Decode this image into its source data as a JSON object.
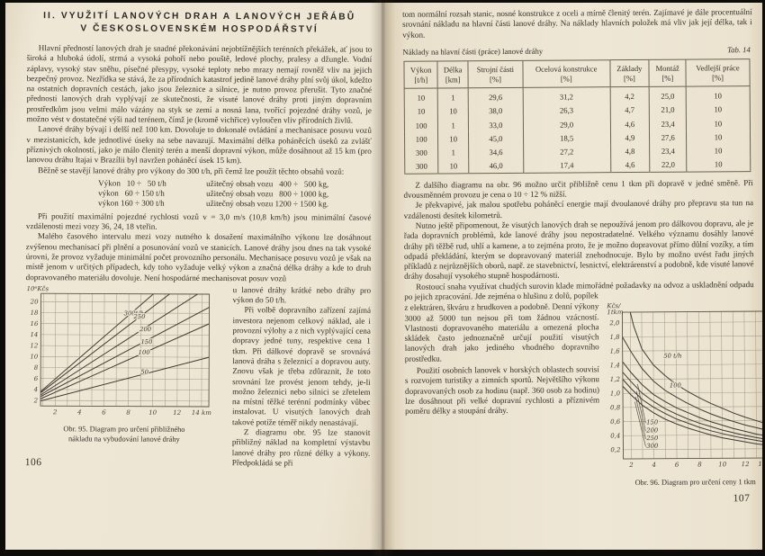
{
  "left_page": {
    "page_number": "106",
    "title_line1": "II. VYUŽITÍ LANOVÝCH DRAH A LANOVÝCH JEŘÁBŮ",
    "title_line2": "V ČESKOSLOVENSKÉM HOSPODÁŘSTVÍ",
    "p1": "Hlavní předností lanových drah je snadné překonávání nejobtížnějších terénních překážek, ať jsou to široká a hluboká údolí, strmá a vysoká pohoří nebo pouště, ledové plochy, pralesy a džungle. Vodní záplavy, vysoký stav sněhu, písečné přesypy, vysoké teploty nebo mrazy nemají rovněž vliv na jejich bezpečný provoz. Nezřídka se stává, že za přírodních katastrof jedině lanové dráhy plní svůj úkol, kdežto na ostatních dopravních cestách, jako jsou železnice a silnice, je nutno provoz přerušit. Tyto značné přednosti lanových drah vyplývají ze skutečnosti, že visuté lanové dráhy proti jiným dopravním prostředkům jsou velmi málo vázány na styk se zemí a nosná lana, tvořící pojezdné dráhy vozů, je možno vést v dostatečné výši nad terénem, čímž je (kromě vichřice) vyloučen vliv přírodních živlů.",
    "p2": "Lanové dráhy bývají i delší než 100 km. Dovoluje to dokonalé ovládání a mechanisace posuvu vozů v mezistanicích, kde jednotlivé úseky na sebe navazují. Maximální délka poháněcích úseků za zvlášť příznivých okolností, jako je málo členitý terén a menší dopravní výkon, může dosáhnout až 15 km (pro lanovou dráhu Itajai v Brazílii byl navržen poháněcí úsek 15 km).",
    "p3": "Běžně se stavějí lanové dráhy pro výkony do 300 t/h, při čemž lze použít těchto obsahů vozů:",
    "capacity": [
      {
        "c1": "Výkon   10 ÷   50 t/h",
        "c2": "užitečný obsah vozu   400 ÷   500 kg,"
      },
      {
        "c1": "výkon   60 ÷ 150 t/h",
        "c2": "užitečný obsah vozu   800 ÷ 1000 kg,"
      },
      {
        "c1": "výkon 160 ÷ 300 t/h",
        "c2": "užitečný obsah vozu 1200 ÷ 1500 kg."
      }
    ],
    "p4": "Při použití maximální pojezdné rychlosti vozů v = 3,0 m/s (10,8 km/h) jsou minimální časové vzdálenosti mezi vozy 36, 24, 18 vteřin.",
    "p5": "Malého časového intervalu mezi vozy nutného k dosažení maximálního výkonu lze dosáhnout zvýšenou mechanisací při plnění a posunování vozů ve stanicích. Lanové dráhy jsou dnes na tak vysoké úrovni, že provoz vyžaduje minimální počet provozního personálu. Mechanisace posuvu vozů je však na místě jenom v určitých případech, kdy toho vyžaduje velký výkon a značná délka dráhy a kde to druh dopravovaného materiálu dovoluje. Není hospodárné mechanisovat posuv vozů",
    "p5_cont": "u lanové dráhy krátké nebo dráhy pro výkon do 50 t/h.",
    "p6": "Při volbě dopravního zařízení zajímá investora nejenom celkový náklad, ale i provozní výlohy a z nich vyplývající cena dopravy jedné tuny, respektive cena 1 tkm. Při dálkové dopravě se srovnává lanová dráha s železnicí a dopravou auty. Znovu však je třeba zdůraznit, že toto srovnání lze provést jenom tehdy, je-li možno železnici nebo silnici se zřetelem na místní těžké terénní podmínky vůbec instalovat. U visutých lanových drah takové potíže téměř nikdy nenastávají.",
    "p7": "Z diagramu obr. 95 lze stanovit přibližný náklad na kompletní výstavbu lanové dráhy pro různé délky a výkony. Předpokládá se při",
    "figure": {
      "caption1": "Obr. 95. Diagram pro určení přibližného",
      "caption2": "nákladu na vybudování lanové dráhy"
    }
  },
  "right_page": {
    "page_number": "107",
    "p0": "tom normální rozsah stanic, nosné konstrukce z oceli a mírně členitý terén. Zajímavé je dále procentuální srovnání nákladu na hlavní části lanové dráhy. Na náklady hlavních položek má vliv jak její délka, tak i výkon.",
    "table_caption": "Náklady na hlavní části (práce) lanové dráhy",
    "tab_label": "Tab. 14",
    "table": {
      "headers": [
        {
          "name": "Výkon",
          "unit": "[t/h]"
        },
        {
          "name": "Délka",
          "unit": "[km]"
        },
        {
          "name": "Strojní části",
          "unit": "[%]"
        },
        {
          "name": "Ocelová konstrukce",
          "unit": "[%]"
        },
        {
          "name": "Základy",
          "unit": "[%]"
        },
        {
          "name": "Montáž",
          "unit": "[%]"
        },
        {
          "name": "Vedlejší práce",
          "unit": "[%]"
        }
      ],
      "rows": [
        [
          "10",
          "1",
          "29,6",
          "31,2",
          "4,2",
          "25,0",
          "10"
        ],
        [
          "10",
          "10",
          "38,0",
          "26,3",
          "4,7",
          "21,0",
          "10"
        ],
        [
          "100",
          "1",
          "33,0",
          "29,0",
          "4,6",
          "23,4",
          "10"
        ],
        [
          "100",
          "10",
          "45,0",
          "18,5",
          "4,9",
          "27,6",
          "10"
        ],
        [
          "300",
          "1",
          "34,6",
          "27,2",
          "4,8",
          "23,4",
          "10"
        ],
        [
          "300",
          "10",
          "46,0",
          "17,4",
          "4,6",
          "22,0",
          "10"
        ]
      ]
    },
    "p1": "Z dalšího diagramu na obr. 96 možno určit přibližně cenu 1 tkm při dopravě v jedné směně. Při dvousměnném provozu je cena o 10 ÷ 12 % nižší.",
    "p2": "Je překvapivé, jak malou spotřebu poháněcí energie mají dvoulanové dráhy pro přepravu sta tun na vzdálenosti desítek kilometrů.",
    "p3": "Nutno ještě připomenout, že visutých lanových drah se nepoužívá jenom pro dálkovou dopravu, ale je řada dopravních problémů, kde lanové dráhy jsou nepostradatelné. Velkého významu dosáhly lanové dráhy při těžbě rud, uhlí a kamene, a to zejména proto, že je možno dopravovat přímo důlní vozíky, a tím odpadá překládání, kterým se dopravovaný materiál znehodnocuje. Bylo by možno uvést řadu jiných příkladů z nejrůznějších oborů, např. ze stavebnictví, lesnictví, elektrárenství a podobně, kde visuté lanové dráhy dosahují vysokého stupně hospodárnosti.",
    "p4a": "Rostoucí snaha využívat chudých surovin klade mimořádné požadavky na odvoz a uskladnění odpadu po jejich zpracování. Jde zejména o hlušinu z dolů, popílek",
    "p4b": "z elektráren, škváru z hrudkoven a podobně. Denní výkony 3000 až 5000 tun nejsou při tom žádnou vzácností. Vlastnosti dopravovaného materiálu a omezená plocha skládek často jednoznačně určují použití visutých lanových drah jako jediného vhodného dopravního prostředku.",
    "p5": "Použití osobních lanovek v horských oblastech souvisí s rozvojem turistiky a zimních sportů. Největšího výkonu dopravovaných osob za hodinu (např. 360 osob za hodinu) lze dosáhnout při velké dopravní rychlosti a příznivém poměru délky a stoupání dráhy.",
    "figure": {
      "caption": "Obr. 96. Diagram pro určení ceny 1 tkm"
    }
  },
  "chart_data": [
    {
      "id": "obr95",
      "type": "line",
      "title": "Obr. 95. Diagram pro určení přibližného nákladu na vybudování lanové dráhy",
      "xlabel": "km",
      "ylabel": "10⁶Kčs",
      "ylabel_lines": [
        "10⁶Kčs"
      ],
      "xlim": [
        0.8,
        14.6
      ],
      "ylim": [
        1,
        21.5
      ],
      "grid": true,
      "size": [
        208,
        148
      ],
      "margins": {
        "l": 17,
        "t": 10,
        "r": 4,
        "b": 13
      },
      "grid_color": "#a79d86",
      "axis_color": "#5a5344",
      "line_color": "#3e3a33",
      "x_ticks": [
        {
          "v": 2,
          "t": "2"
        },
        {
          "v": 4,
          "t": "4"
        },
        {
          "v": 6,
          "t": "6"
        },
        {
          "v": 8,
          "t": "8"
        },
        {
          "v": 10,
          "t": "10"
        },
        {
          "v": 12,
          "t": "12"
        },
        {
          "v": 14,
          "t": "14 km"
        }
      ],
      "y_ticks": [
        {
          "v": 2,
          "t": "2"
        },
        {
          "v": 4,
          "t": "4"
        },
        {
          "v": 6,
          "t": "6"
        },
        {
          "v": 8,
          "t": "8"
        },
        {
          "v": 10,
          "t": "10"
        },
        {
          "v": 12,
          "t": "12"
        },
        {
          "v": 14,
          "t": "14"
        },
        {
          "v": 16,
          "t": "16"
        },
        {
          "v": 18,
          "t": "18"
        },
        {
          "v": 20,
          "t": "20"
        }
      ],
      "y_grid": [
        2,
        4,
        6,
        8,
        10,
        12,
        14,
        16,
        18,
        20
      ],
      "series": [
        {
          "name": "300 t/h",
          "label": "300t/h",
          "label_pos": [
            7.6,
            17.6
          ],
          "points": [
            [
              0.8,
              3.6
            ],
            [
              14.6,
              30.4
            ]
          ]
        },
        {
          "name": "250 t/h",
          "label": "250",
          "label_pos": [
            8.4,
            17.0
          ],
          "points": [
            [
              0.8,
              3.4
            ],
            [
              14.6,
              27.1
            ]
          ]
        },
        {
          "name": "200 t/h",
          "label": "200",
          "label_pos": [
            8.9,
            14.7
          ],
          "points": [
            [
              0.8,
              3.0
            ],
            [
              14.6,
              22.9
            ]
          ]
        },
        {
          "name": "150 t/h",
          "label": "150",
          "label_pos": [
            9.0,
            12.4
          ],
          "points": [
            [
              0.8,
              2.7
            ],
            [
              14.6,
              19.1
            ]
          ]
        },
        {
          "name": "100 t/h",
          "label": "100",
          "label_pos": [
            8.8,
            10.5
          ],
          "points": [
            [
              0.8,
              2.3
            ],
            [
              14.6,
              16.1
            ]
          ]
        },
        {
          "name": "50 t/h",
          "label": "50",
          "label_pos": [
            9.0,
            6.9
          ],
          "points": [
            [
              0.8,
              1.9
            ],
            [
              14.6,
              10.0
            ]
          ]
        }
      ]
    },
    {
      "id": "obr96",
      "type": "line",
      "title": "Obr. 96. Diagram pro určení ceny 1 tkm",
      "xlabel": "km",
      "ylabel": "Kčs/1tkm",
      "ylabel_lines": [
        "Kčs/",
        "1tkm"
      ],
      "xlim": [
        1.3,
        15.2
      ],
      "ylim": [
        0.07,
        2.15
      ],
      "grid": true,
      "size": [
        196,
        188
      ],
      "margins": {
        "l": 18,
        "t": 12,
        "r": 2,
        "b": 13
      },
      "grid_color": "#a79d86",
      "axis_color": "#5a5344",
      "line_color": "#3e3a33",
      "x_ticks": [
        {
          "v": 2,
          "t": "2"
        },
        {
          "v": 4,
          "t": "4"
        },
        {
          "v": 6,
          "t": "6"
        },
        {
          "v": 8,
          "t": "8"
        },
        {
          "v": 10,
          "t": "10"
        },
        {
          "v": 12,
          "t": "12"
        },
        {
          "v": 14,
          "t": "14 km"
        }
      ],
      "y_ticks": [
        {
          "v": 0.2,
          "t": "0,2"
        },
        {
          "v": 0.4,
          "t": "0,4"
        },
        {
          "v": 0.6,
          "t": "0,6"
        },
        {
          "v": 0.8,
          "t": "0,8"
        },
        {
          "v": 1.0,
          "t": "1,0"
        },
        {
          "v": 1.2,
          "t": "1,2"
        },
        {
          "v": 1.4,
          "t": "1,4"
        },
        {
          "v": 1.6,
          "t": "1,6"
        },
        {
          "v": 1.8,
          "t": "1,8"
        },
        {
          "v": 2.0,
          "t": "2,0"
        }
      ],
      "y_grid": [
        0.2,
        0.4,
        0.6,
        0.8,
        1.0,
        1.2,
        1.4,
        1.6,
        1.8,
        2.0
      ],
      "leaders": [
        [
          [
            3.28,
            0.575
          ],
          [
            2.6,
            1.13
          ]
        ],
        [
          [
            3.28,
            0.46
          ],
          [
            2.5,
            1.03
          ]
        ],
        [
          [
            3.28,
            0.35
          ],
          [
            2.42,
            0.95
          ]
        ],
        [
          [
            3.28,
            0.24
          ],
          [
            2.35,
            0.88
          ]
        ]
      ],
      "series": [
        {
          "name": "50 t/h",
          "label": "50 t/h",
          "label_pos": [
            4.9,
            1.5
          ],
          "points": [
            [
              2.0,
              2.15
            ],
            [
              2.3,
              1.95
            ],
            [
              3,
              1.63
            ],
            [
              4,
              1.4
            ],
            [
              5,
              1.25
            ],
            [
              6,
              1.12
            ],
            [
              7,
              1.02
            ],
            [
              8,
              0.93
            ],
            [
              9,
              0.85
            ],
            [
              10,
              0.78
            ],
            [
              11,
              0.71
            ],
            [
              12,
              0.65
            ],
            [
              13,
              0.6
            ],
            [
              14,
              0.55
            ],
            [
              15.2,
              0.51
            ]
          ]
        },
        {
          "name": "100 t/h",
          "label": "100",
          "label_pos": [
            5.4,
            1.08
          ],
          "points": [
            [
              1.3,
              1.8
            ],
            [
              2,
              1.6
            ],
            [
              3,
              1.35
            ],
            [
              4,
              1.17
            ],
            [
              5,
              1.04
            ],
            [
              6,
              0.94
            ],
            [
              7,
              0.85
            ],
            [
              8,
              0.77
            ],
            [
              9,
              0.7
            ],
            [
              10,
              0.64
            ],
            [
              11,
              0.59
            ],
            [
              12,
              0.54
            ],
            [
              13,
              0.5
            ],
            [
              14,
              0.46
            ],
            [
              15.2,
              0.42
            ]
          ]
        },
        {
          "name": "150 t/h",
          "label": "150",
          "label_pos": [
            3.35,
            0.56
          ],
          "points": [
            [
              1.3,
              1.45
            ],
            [
              2,
              1.3
            ],
            [
              3,
              1.12
            ],
            [
              4,
              0.98
            ],
            [
              5,
              0.88
            ],
            [
              6,
              0.79
            ],
            [
              7,
              0.72
            ],
            [
              8,
              0.65
            ],
            [
              9,
              0.59
            ],
            [
              10,
              0.54
            ],
            [
              11,
              0.49
            ],
            [
              12,
              0.45
            ],
            [
              13,
              0.41
            ],
            [
              14,
              0.38
            ],
            [
              15.2,
              0.34
            ]
          ]
        },
        {
          "name": "200 t/h",
          "label": "200",
          "label_pos": [
            3.35,
            0.445
          ],
          "points": [
            [
              1.3,
              1.3
            ],
            [
              2,
              1.17
            ],
            [
              3,
              1.0
            ],
            [
              4,
              0.88
            ],
            [
              5,
              0.78
            ],
            [
              6,
              0.7
            ],
            [
              7,
              0.63
            ],
            [
              8,
              0.57
            ],
            [
              9,
              0.52
            ],
            [
              10,
              0.47
            ],
            [
              11,
              0.43
            ],
            [
              12,
              0.39
            ],
            [
              13,
              0.36
            ],
            [
              14,
              0.33
            ],
            [
              15.2,
              0.3
            ]
          ]
        },
        {
          "name": "250 t/h",
          "label": "250",
          "label_pos": [
            3.35,
            0.335
          ],
          "points": [
            [
              1.3,
              1.2
            ],
            [
              2,
              1.07
            ],
            [
              3,
              0.91
            ],
            [
              4,
              0.8
            ],
            [
              5,
              0.71
            ],
            [
              6,
              0.63
            ],
            [
              7,
              0.57
            ],
            [
              8,
              0.51
            ],
            [
              9,
              0.46
            ],
            [
              10,
              0.42
            ],
            [
              11,
              0.38
            ],
            [
              12,
              0.35
            ],
            [
              13,
              0.32
            ],
            [
              14,
              0.29
            ],
            [
              15.2,
              0.26
            ]
          ]
        },
        {
          "name": "300 t/h",
          "label": "300",
          "label_pos": [
            3.35,
            0.225
          ],
          "points": [
            [
              1.3,
              1.1
            ],
            [
              2,
              0.98
            ],
            [
              3,
              0.83
            ],
            [
              4,
              0.72
            ],
            [
              5,
              0.63
            ],
            [
              6,
              0.56
            ],
            [
              7,
              0.5
            ],
            [
              8,
              0.45
            ],
            [
              9,
              0.4
            ],
            [
              10,
              0.36
            ],
            [
              11,
              0.33
            ],
            [
              12,
              0.3
            ],
            [
              13,
              0.27
            ],
            [
              14,
              0.25
            ],
            [
              15.2,
              0.22
            ]
          ]
        }
      ]
    }
  ]
}
